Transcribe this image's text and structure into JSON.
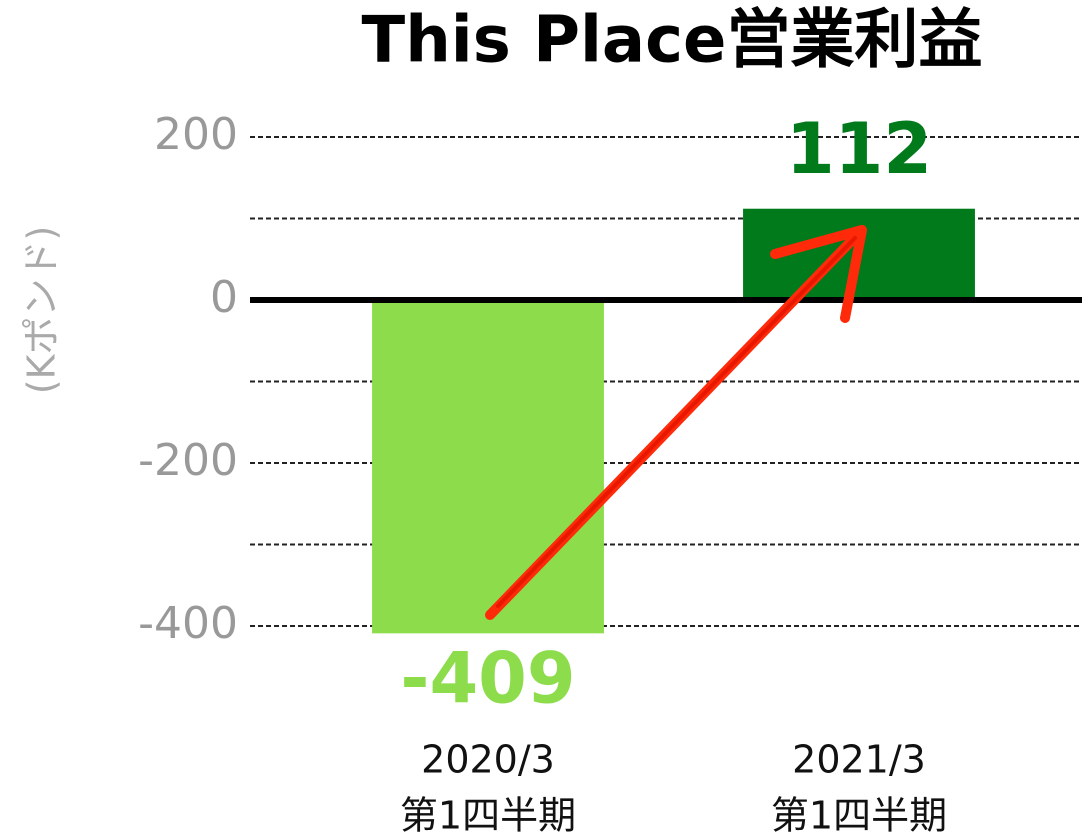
{
  "chart_data": {
    "type": "bar",
    "title": "This Place営業利益",
    "y_label": "(Kポンド)",
    "categories": [
      [
        "2020/3",
        "第1四半期"
      ],
      [
        "2021/3",
        "第1四半期"
      ]
    ],
    "values": [
      -409,
      112
    ],
    "colors": [
      "#8cdc4c",
      "#007a1a"
    ],
    "ylim": [
      -420,
      220
    ],
    "yticks": [
      -400,
      -200,
      0,
      200
    ],
    "minor_yticks": [
      -300,
      -100,
      100
    ],
    "grid": true
  }
}
